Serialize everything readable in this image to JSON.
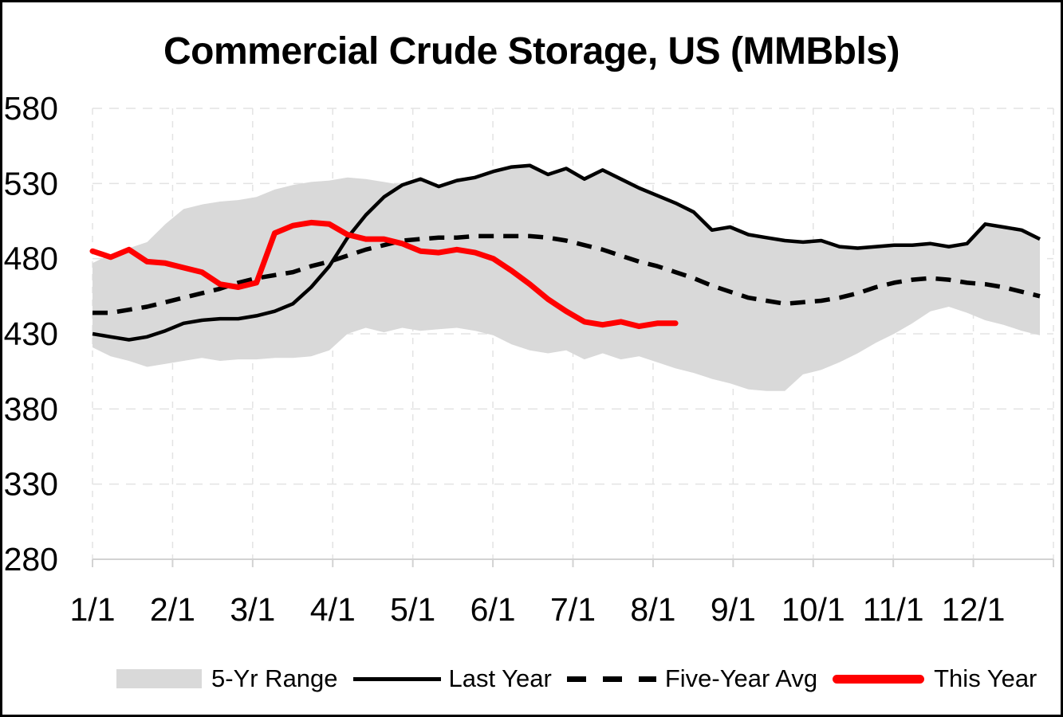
{
  "title": "Commercial Crude Storage, US (MMBbls)",
  "chart_data": {
    "type": "line",
    "title": "Commercial Crude Storage, US (MMBbls)",
    "grid": true,
    "legend_position": "bottom",
    "y_axis": {
      "min": 280,
      "max": 580,
      "step": 50,
      "ticks": [
        580,
        530,
        480,
        430,
        380,
        330,
        280
      ]
    },
    "x_axis": {
      "tick_labels": [
        "1/1",
        "2/1",
        "3/1",
        "4/1",
        "5/1",
        "6/1",
        "7/1",
        "8/1",
        "9/1",
        "10/1",
        "11/1",
        "12/1"
      ],
      "points_per_year": 53,
      "frequency": "weekly"
    },
    "band": {
      "name": "5-Yr Range",
      "color": "#D9D9D9",
      "upper": [
        477,
        483,
        487,
        491,
        503,
        513,
        516,
        518,
        519,
        521,
        526,
        529,
        531,
        532,
        534,
        533,
        531,
        529,
        533,
        528,
        532,
        534,
        538,
        541,
        542,
        536,
        540,
        533,
        539,
        533,
        527,
        522,
        517,
        511,
        499,
        501,
        496,
        494,
        492,
        491,
        492,
        488,
        487,
        488,
        489,
        489,
        490,
        488,
        490,
        503,
        501,
        499,
        493
      ],
      "lower": [
        421,
        415,
        412,
        408,
        410,
        412,
        414,
        412,
        413,
        413,
        414,
        414,
        415,
        419,
        430,
        434,
        431,
        434,
        432,
        433,
        434,
        432,
        429,
        423,
        419,
        417,
        419,
        413,
        417,
        413,
        415,
        411,
        407,
        404,
        400,
        397,
        393,
        392,
        392,
        403,
        406,
        411,
        417,
        424,
        430,
        437,
        445,
        448,
        444,
        439,
        436,
        432,
        429
      ]
    },
    "series": [
      {
        "name": "Last Year",
        "color": "#000000",
        "style": "solid",
        "values": [
          430,
          428,
          426,
          428,
          432,
          437,
          439,
          440,
          440,
          442,
          445,
          450,
          461,
          475,
          494,
          509,
          521,
          529,
          533,
          528,
          532,
          534,
          538,
          541,
          542,
          536,
          540,
          533,
          539,
          533,
          527,
          522,
          517,
          511,
          499,
          501,
          496,
          494,
          492,
          491,
          492,
          488,
          487,
          488,
          489,
          489,
          490,
          488,
          490,
          503,
          501,
          499,
          493
        ]
      },
      {
        "name": "Five-Year Avg",
        "color": "#000000",
        "style": "dashed",
        "values": [
          444,
          444,
          446,
          448,
          451,
          454,
          457,
          460,
          464,
          467,
          469,
          471,
          475,
          478,
          482,
          486,
          489,
          492,
          493,
          494,
          494,
          495,
          495,
          495,
          495,
          494,
          492,
          489,
          486,
          482,
          478,
          475,
          471,
          467,
          462,
          458,
          454,
          452,
          450,
          451,
          452,
          454,
          457,
          461,
          464,
          466,
          467,
          466,
          464,
          463,
          461,
          458,
          455
        ]
      },
      {
        "name": "This Year",
        "color": "#FF0000",
        "style": "solid",
        "values": [
          485,
          481,
          486,
          478,
          477,
          474,
          471,
          463,
          461,
          464,
          497,
          502,
          504,
          503,
          496,
          493,
          493,
          490,
          485,
          484,
          486,
          484,
          480,
          472,
          463,
          453,
          445,
          438,
          436,
          438,
          435,
          437,
          437
        ]
      }
    ],
    "colors": {
      "band": "#D9D9D9",
      "gridline": "#E3E3E3",
      "axis_line": "#D2D2D2",
      "text": "#000000",
      "this_year": "#FF0000",
      "last_year": "#000000"
    }
  }
}
